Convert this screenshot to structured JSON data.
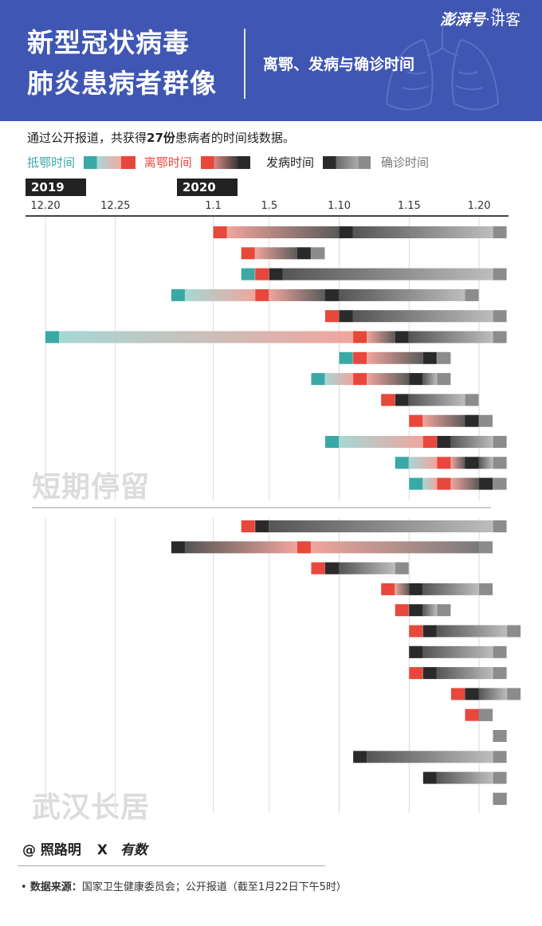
{
  "header": {
    "title_line1": "新型冠状病毒",
    "title_line2": "肺炎患病者群像",
    "subtitle": "离鄂、发病与确诊时间",
    "logo_main": "澎湃号",
    "logo_sub": "·讲客",
    "logo_tag": "PAI"
  },
  "intro": {
    "prefix": "通过公开报道，共获得",
    "highlight": "27份",
    "suffix": "患病者的时间线数据。"
  },
  "legend": {
    "arrive_label": "抵鄂时间",
    "leave_label": "离鄂时间",
    "onset_label": "发病时间",
    "confirm_label": "确诊时间"
  },
  "colors": {
    "arrive": "#3aa9a6",
    "leave": "#e8473b",
    "onset": "#2a2a2a",
    "confirm": "#8c8c8c",
    "header_bg": "#3f56b3"
  },
  "years": [
    "2019",
    "2020"
  ],
  "chart_data": {
    "type": "timeline",
    "x_unit": "date",
    "x_ticks": [
      "12.20",
      "12.25",
      "1.1",
      "1.5",
      "1.10",
      "1.15",
      "1.20"
    ],
    "groups": [
      {
        "label": "短期停留",
        "patients": [
          {
            "leave": "2020-01-01",
            "onset": "2020-01-10",
            "confirm": "2020-01-21"
          },
          {
            "leave": "2020-01-03",
            "onset": "2020-01-07",
            "confirm": "2020-01-08"
          },
          {
            "arrive": "2020-01-03",
            "leave": "2020-01-04",
            "onset": "2020-01-05",
            "confirm": "2020-01-21"
          },
          {
            "arrive": "2019-12-29",
            "leave": "2020-01-04",
            "onset": "2020-01-09",
            "confirm": "2020-01-19"
          },
          {
            "leave": "2020-01-09",
            "onset": "2020-01-10",
            "confirm": "2020-01-21"
          },
          {
            "arrive": "2019-12-20",
            "leave": "2020-01-11",
            "onset": "2020-01-14",
            "confirm": "2020-01-21"
          },
          {
            "arrive": "2020-01-10",
            "leave": "2020-01-11",
            "onset": "2020-01-16",
            "confirm": "2020-01-17"
          },
          {
            "arrive": "2020-01-08",
            "leave": "2020-01-11",
            "onset": "2020-01-15",
            "confirm": "2020-01-17"
          },
          {
            "leave": "2020-01-13",
            "onset": "2020-01-14",
            "confirm": "2020-01-19"
          },
          {
            "leave": "2020-01-15",
            "onset": "2020-01-19",
            "confirm": "2020-01-20"
          },
          {
            "arrive": "2020-01-09",
            "leave": "2020-01-16",
            "onset": "2020-01-17",
            "confirm": "2020-01-21"
          },
          {
            "arrive": "2020-01-14",
            "leave": "2020-01-17",
            "onset": "2020-01-19",
            "confirm": "2020-01-21"
          },
          {
            "arrive": "2020-01-15",
            "leave": "2020-01-17",
            "onset": "2020-01-20",
            "confirm": "2020-01-21"
          }
        ]
      },
      {
        "label": "武汉长居",
        "patients": [
          {
            "leave": "2020-01-03",
            "onset": "2020-01-04",
            "confirm": "2020-01-21"
          },
          {
            "leave": "2020-01-07",
            "onset": "2019-12-29",
            "confirm": "2020-01-20"
          },
          {
            "leave": "2020-01-08",
            "onset": "2020-01-09",
            "confirm": "2020-01-14"
          },
          {
            "leave": "2020-01-13",
            "onset": "2020-01-15",
            "confirm": "2020-01-20"
          },
          {
            "leave": "2020-01-14",
            "onset": "2020-01-15",
            "confirm": "2020-01-17"
          },
          {
            "leave": "2020-01-15",
            "onset": "2020-01-16",
            "confirm": "2020-01-22"
          },
          {
            "leave": "2020-01-15",
            "onset": "2020-01-15",
            "confirm": "2020-01-21"
          },
          {
            "leave": "2020-01-15",
            "onset": "2020-01-16",
            "confirm": "2020-01-21"
          },
          {
            "leave": "2020-01-18",
            "onset": "2020-01-19",
            "confirm": "2020-01-22"
          },
          {
            "leave": "2020-01-19",
            "onset": "2020-01-20",
            "confirm": "2020-01-20"
          },
          {
            "leave": "2020-01-21",
            "confirm": "2020-01-21"
          },
          {
            "onset": "2020-01-11",
            "confirm": "2020-01-21"
          },
          {
            "onset": "2020-01-16",
            "confirm": "2020-01-21"
          },
          {
            "onset": "2020-01-21",
            "confirm": "2020-01-21"
          }
        ]
      }
    ]
  },
  "credit": {
    "author": "@ 照路明",
    "x": "X",
    "partner": "有数"
  },
  "source": {
    "label": "数据来源：",
    "text": "国家卫生健康委员会；公开报道（截至1月22日下午5时）"
  }
}
